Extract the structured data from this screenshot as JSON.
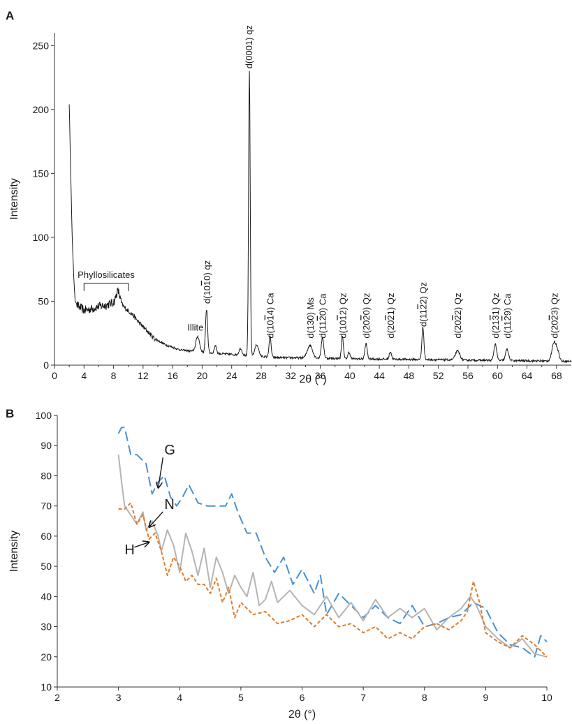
{
  "panels": {
    "a": "A",
    "b": "B"
  },
  "chart_data": [
    {
      "type": "line",
      "panel": "A",
      "xlabel": "2θ (°)",
      "ylabel": "Intensity",
      "xlim": [
        0,
        70
      ],
      "ylim": [
        0,
        260
      ],
      "xticks": [
        0,
        4,
        8,
        12,
        16,
        20,
        24,
        28,
        32,
        36,
        40,
        44,
        48,
        52,
        56,
        60,
        64,
        68
      ],
      "yticks": [
        0,
        50,
        100,
        150,
        200,
        250
      ],
      "grid": false,
      "series": [
        {
          "color": "#1a1a1a",
          "baseline": [
            [
              2.0,
              204
            ],
            [
              2.2,
              150
            ],
            [
              2.4,
              100
            ],
            [
              2.6,
              70
            ],
            [
              2.8,
              50
            ],
            [
              3.2,
              46
            ],
            [
              4.0,
              43
            ],
            [
              5.0,
              44
            ],
            [
              6.0,
              46
            ],
            [
              7.0,
              47
            ],
            [
              8.0,
              49
            ],
            [
              8.6,
              50
            ],
            [
              9.5,
              45
            ],
            [
              10.5,
              40
            ],
            [
              11.5,
              33
            ],
            [
              12.5,
              27
            ],
            [
              13.5,
              21
            ],
            [
              15.0,
              16
            ],
            [
              17.0,
              12
            ],
            [
              20.0,
              10
            ],
            [
              25.0,
              8
            ],
            [
              30.0,
              6
            ],
            [
              40.0,
              5
            ],
            [
              55.0,
              4
            ],
            [
              70.0,
              3
            ]
          ],
          "peaks": [
            {
              "x": 8.6,
              "h": 8,
              "w": 0.25
            },
            {
              "x": 19.4,
              "h": 12,
              "w": 0.25
            },
            {
              "x": 20.6,
              "h": 34,
              "w": 0.14
            },
            {
              "x": 21.8,
              "h": 6,
              "w": 0.15
            },
            {
              "x": 25.2,
              "h": 5,
              "w": 0.2
            },
            {
              "x": 26.4,
              "h": 222,
              "w": 0.11
            },
            {
              "x": 27.4,
              "h": 9,
              "w": 0.25
            },
            {
              "x": 29.2,
              "h": 16,
              "w": 0.14
            },
            {
              "x": 34.6,
              "h": 10,
              "w": 0.35
            },
            {
              "x": 36.3,
              "h": 16,
              "w": 0.17
            },
            {
              "x": 39.0,
              "h": 18,
              "w": 0.13
            },
            {
              "x": 39.9,
              "h": 5,
              "w": 0.15
            },
            {
              "x": 42.2,
              "h": 12,
              "w": 0.15
            },
            {
              "x": 45.5,
              "h": 6,
              "w": 0.15
            },
            {
              "x": 49.9,
              "h": 25,
              "w": 0.14
            },
            {
              "x": 54.6,
              "h": 7,
              "w": 0.3
            },
            {
              "x": 59.7,
              "h": 13,
              "w": 0.18
            },
            {
              "x": 61.3,
              "h": 9,
              "w": 0.2
            },
            {
              "x": 67.7,
              "h": 15,
              "w": 0.3
            },
            {
              "x": 68.2,
              "h": 5,
              "w": 0.2
            }
          ]
        }
      ],
      "annotations": [
        {
          "text": "Phyllosilicates",
          "type": "bracket",
          "x1": 4.0,
          "x2": 10.0,
          "y": 64,
          "ylow": 58
        },
        {
          "text": "Illite",
          "type": "horizontal",
          "x": 18.0,
          "y": 27
        },
        {
          "text": "d(10",
          "tail": "0) qz",
          "bar": "1",
          "type": "vertical",
          "x": 20.6,
          "y": 48
        },
        {
          "text": "d(0001) qz",
          "type": "vertical",
          "x": 26.3,
          "y": 232
        },
        {
          "text": "d(10",
          "tail": "4) Ca",
          "bar": "1",
          "type": "vertical",
          "x": 29.2,
          "y": 21
        },
        {
          "text": "d(130) Ms",
          "type": "vertical",
          "x": 34.6,
          "y": 21
        },
        {
          "text": "d(11",
          "tail": "0) Ca",
          "bar": "2",
          "type": "vertical",
          "x": 36.3,
          "y": 21
        },
        {
          "text": "d(10",
          "tail": "2) Qz",
          "bar": "1",
          "type": "vertical",
          "x": 39.0,
          "y": 21
        },
        {
          "text": "d(20",
          "tail": "0) Qz",
          "bar": "2",
          "type": "vertical",
          "x": 42.2,
          "y": 21
        },
        {
          "text": "d(20",
          "tail": "1) Qz",
          "bar": "2",
          "type": "vertical",
          "x": 45.5,
          "y": 21
        },
        {
          "text": "d(11",
          "tail": "2) Qz",
          "bar": "2",
          "type": "vertical",
          "x": 49.9,
          "y": 30
        },
        {
          "text": "d(20",
          "tail": "2) Qz",
          "bar": "2",
          "type": "vertical",
          "x": 54.6,
          "y": 21
        },
        {
          "text": "d(21",
          "tail": "1) Qz",
          "bar": "3",
          "type": "vertical",
          "x": 59.7,
          "y": 21
        },
        {
          "text": "d(11",
          "tail": "9) Ca",
          "bar": "2",
          "type": "vertical",
          "x": 61.3,
          "y": 21
        },
        {
          "text": "d(20",
          "tail": "3) Qz",
          "bar": "2",
          "type": "vertical",
          "x": 67.7,
          "y": 21
        }
      ]
    },
    {
      "type": "line",
      "panel": "B",
      "xlabel": "2θ (°)",
      "ylabel": "Intensity",
      "xlim": [
        2,
        10
      ],
      "ylim": [
        10,
        100
      ],
      "xticks": [
        2,
        3,
        4,
        5,
        6,
        7,
        8,
        9,
        10
      ],
      "yticks": [
        10,
        20,
        30,
        40,
        50,
        60,
        70,
        80,
        90,
        100
      ],
      "grid": false,
      "series": [
        {
          "name": "G",
          "color": "#4a90cf",
          "style": "long-dash",
          "x": [
            3.0,
            3.05,
            3.1,
            3.2,
            3.3,
            3.45,
            3.55,
            3.65,
            3.75,
            3.85,
            3.95,
            4.05,
            4.15,
            4.3,
            4.45,
            4.6,
            4.75,
            4.85,
            4.95,
            5.1,
            5.25,
            5.4,
            5.55,
            5.7,
            5.85,
            6.0,
            6.2,
            6.3,
            6.4,
            6.6,
            6.8,
            7.0,
            7.2,
            7.4,
            7.6,
            7.8,
            8.0,
            8.2,
            8.4,
            8.6,
            8.8,
            9.0,
            9.2,
            9.4,
            9.6,
            9.8,
            9.9,
            10.0
          ],
          "y": [
            94,
            96,
            96,
            87,
            87,
            84,
            74,
            78,
            80,
            73,
            70,
            73,
            77,
            71,
            70,
            70,
            70,
            74,
            68,
            61,
            61,
            53,
            48,
            53,
            44,
            49,
            41,
            47,
            34,
            41,
            37,
            33,
            37,
            33,
            31,
            37,
            30,
            31,
            33,
            34,
            38,
            36,
            28,
            24,
            23,
            20,
            27,
            25
          ]
        },
        {
          "name": "N",
          "color": "#b4b4b4",
          "style": "solid",
          "x": [
            3.0,
            3.05,
            3.1,
            3.2,
            3.3,
            3.4,
            3.45,
            3.55,
            3.65,
            3.7,
            3.8,
            3.9,
            4.0,
            4.1,
            4.2,
            4.3,
            4.4,
            4.5,
            4.6,
            4.7,
            4.8,
            4.9,
            5.0,
            5.1,
            5.2,
            5.3,
            5.4,
            5.5,
            5.6,
            5.8,
            6.0,
            6.2,
            6.4,
            6.6,
            6.8,
            7.0,
            7.2,
            7.4,
            7.6,
            7.8,
            8.0,
            8.2,
            8.4,
            8.6,
            8.75,
            8.85,
            9.0,
            9.2,
            9.4,
            9.6,
            9.8,
            10.0
          ],
          "y": [
            87,
            78,
            70,
            67,
            64,
            68,
            62,
            65,
            60,
            55,
            62,
            57,
            48,
            61,
            55,
            47,
            56,
            43,
            53,
            48,
            41,
            47,
            43,
            40,
            48,
            37,
            39,
            45,
            38,
            42,
            37,
            34,
            40,
            33,
            38,
            32,
            39,
            33,
            36,
            33,
            36,
            29,
            33,
            36,
            40,
            37,
            30,
            26,
            23,
            26,
            21,
            20
          ]
        },
        {
          "name": "H",
          "color": "#e07b2a",
          "style": "short-dash",
          "x": [
            3.0,
            3.1,
            3.2,
            3.3,
            3.4,
            3.5,
            3.6,
            3.7,
            3.8,
            3.9,
            4.0,
            4.1,
            4.2,
            4.3,
            4.4,
            4.5,
            4.6,
            4.7,
            4.8,
            4.9,
            5.0,
            5.2,
            5.4,
            5.6,
            5.8,
            6.0,
            6.2,
            6.4,
            6.6,
            6.8,
            7.0,
            7.2,
            7.4,
            7.6,
            7.8,
            8.0,
            8.2,
            8.4,
            8.6,
            8.7,
            8.8,
            8.9,
            9.0,
            9.2,
            9.4,
            9.6,
            9.8,
            10.0
          ],
          "y": [
            69,
            69,
            71,
            64,
            67,
            59,
            61,
            55,
            47,
            53,
            50,
            45,
            47,
            44,
            44,
            41,
            46,
            38,
            43,
            33,
            38,
            34,
            35,
            31,
            32,
            34,
            30,
            34,
            30,
            31,
            28,
            30,
            26,
            28,
            26,
            30,
            31,
            29,
            32,
            35,
            45,
            38,
            28,
            25,
            23,
            27,
            24,
            20
          ]
        }
      ],
      "labels": [
        {
          "text": "G",
          "x": 3.75,
          "y": 87
        },
        {
          "text": "N",
          "x": 3.75,
          "y": 69
        },
        {
          "text": "H",
          "x": 3.1,
          "y": 54
        }
      ]
    }
  ]
}
